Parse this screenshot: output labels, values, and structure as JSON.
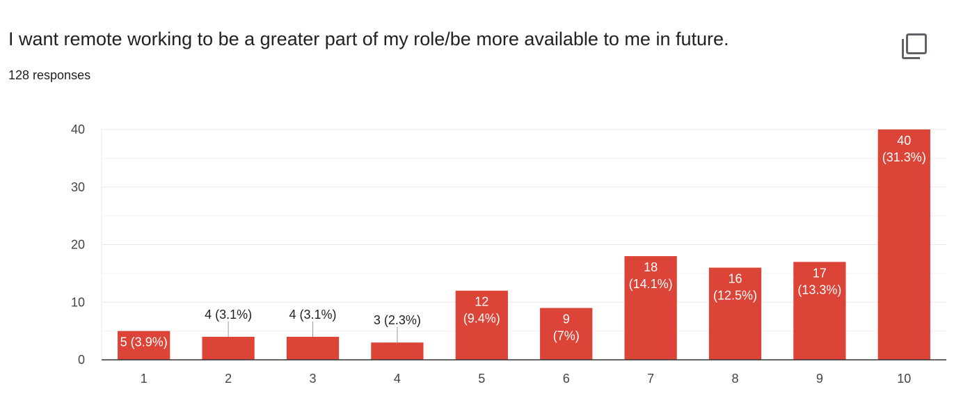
{
  "question": {
    "title": "I want remote working to be a greater part of my role/be more available to me in future.",
    "responses": "128 responses"
  },
  "icons": {
    "copy": "copy-icon"
  },
  "colors": {
    "bar": "#db4437",
    "grid": "#e8e8e8",
    "axis": "#333333",
    "text": "#202124",
    "leader": "#999999"
  },
  "chart_data": {
    "type": "bar",
    "categories": [
      "1",
      "2",
      "3",
      "4",
      "5",
      "6",
      "7",
      "8",
      "9",
      "10"
    ],
    "values": [
      5,
      4,
      4,
      3,
      12,
      9,
      18,
      16,
      17,
      40
    ],
    "data_labels": [
      "5 (3.9%)",
      "4 (3.1%)",
      "4 (3.1%)",
      "3 (2.3%)",
      "12 (9.4%)",
      "9 (7%)",
      "18 (14.1%)",
      "16 (12.5%)",
      "17 (13.3%)",
      "40 (31.3%)"
    ],
    "y_ticks": [
      "0",
      "10",
      "20",
      "30",
      "40"
    ],
    "ylim": [
      0,
      40
    ],
    "grid": true,
    "minor_grid_step": 5,
    "title": "",
    "xlabel": "",
    "ylabel": ""
  }
}
